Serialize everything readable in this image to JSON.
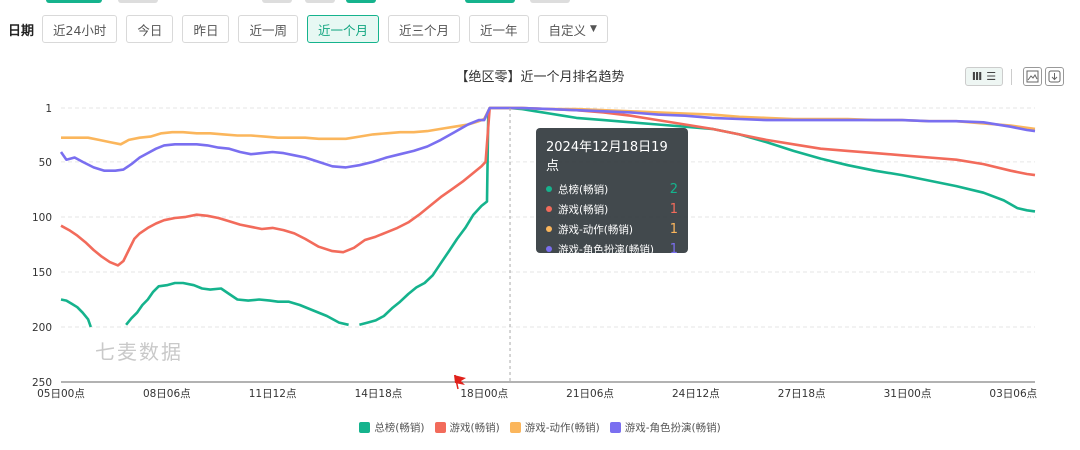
{
  "page": {
    "filter_label": "日期",
    "buttons": [
      {
        "label": "近24小时",
        "active": false
      },
      {
        "label": "今日",
        "active": false
      },
      {
        "label": "昨日",
        "active": false
      },
      {
        "label": "近一周",
        "active": false
      },
      {
        "label": "近一个月",
        "active": true
      },
      {
        "label": "近三个月",
        "active": false
      },
      {
        "label": "近一年",
        "active": false
      },
      {
        "label": "自定义",
        "active": false,
        "dropdown": true
      }
    ],
    "watermark": "七麦数据",
    "accent_color": "#15b38d",
    "toolbox_icons": [
      "bar-chart-icon",
      "list-icon",
      "save-image-icon",
      "download-icon"
    ]
  },
  "tooltip": {
    "title": "2024年12月18日19点",
    "rows": [
      {
        "name": "总榜(畅销)",
        "value": "2",
        "color": "#15b38d"
      },
      {
        "name": "游戏(畅销)",
        "value": "1",
        "color": "#f26b5b"
      },
      {
        "name": "游戏-动作(畅销)",
        "value": "1",
        "color": "#fbb65c"
      },
      {
        "name": "游戏-角色扮演(畅销)",
        "value": "1",
        "color": "#7a6ff0"
      }
    ]
  },
  "chart_data": {
    "type": "line",
    "title": "【绝区零】近一个月排名趋势",
    "y_inverse": true,
    "ylim": [
      1,
      250
    ],
    "yticks": [
      1,
      50,
      100,
      150,
      200,
      250
    ],
    "xlim": [
      0,
      718
    ],
    "xticks": [
      {
        "x": 0,
        "label": "05日00点"
      },
      {
        "x": 78,
        "label": "08日06点"
      },
      {
        "x": 156,
        "label": "11日12点"
      },
      {
        "x": 234,
        "label": "14日18点"
      },
      {
        "x": 312,
        "label": "18日00点"
      },
      {
        "x": 390,
        "label": "21日06点"
      },
      {
        "x": 468,
        "label": "24日12点"
      },
      {
        "x": 546,
        "label": "27日18点"
      },
      {
        "x": 624,
        "label": "31日00点"
      },
      {
        "x": 702,
        "label": "03日06点"
      }
    ],
    "tooltip_x": 331,
    "legend_position": "bottom",
    "grid": "horizontal-dashed",
    "series": [
      {
        "name": "总榜(畅销)",
        "color": "#15b38d",
        "points": [
          [
            0,
            175
          ],
          [
            4,
            176
          ],
          [
            8,
            179
          ],
          [
            12,
            182
          ],
          [
            16,
            187
          ],
          [
            20,
            193
          ],
          [
            22,
            200
          ],
          null,
          [
            48,
            198
          ],
          [
            52,
            192
          ],
          [
            56,
            187
          ],
          [
            60,
            180
          ],
          [
            64,
            175
          ],
          [
            68,
            168
          ],
          [
            72,
            163
          ],
          [
            78,
            162
          ],
          [
            84,
            160
          ],
          [
            90,
            160
          ],
          [
            98,
            162
          ],
          [
            104,
            165
          ],
          [
            110,
            166
          ],
          [
            118,
            165
          ],
          [
            124,
            170
          ],
          [
            130,
            175
          ],
          [
            138,
            176
          ],
          [
            146,
            175
          ],
          [
            154,
            176
          ],
          [
            160,
            177
          ],
          [
            168,
            177
          ],
          [
            176,
            180
          ],
          [
            186,
            185
          ],
          [
            196,
            190
          ],
          [
            205,
            196
          ],
          [
            212,
            198
          ],
          null,
          [
            220,
            198
          ],
          [
            226,
            196
          ],
          [
            232,
            194
          ],
          [
            238,
            190
          ],
          [
            244,
            183
          ],
          [
            250,
            177
          ],
          [
            256,
            170
          ],
          [
            262,
            164
          ],
          [
            268,
            160
          ],
          [
            274,
            153
          ],
          [
            280,
            142
          ],
          [
            286,
            131
          ],
          [
            292,
            120
          ],
          [
            298,
            110
          ],
          [
            304,
            98
          ],
          [
            310,
            90
          ],
          [
            314,
            86
          ],
          [
            315,
            4
          ],
          [
            316,
            1
          ],
          [
            330,
            1
          ],
          [
            340,
            2
          ],
          [
            350,
            4
          ],
          [
            360,
            6
          ],
          [
            370,
            8
          ],
          [
            380,
            10
          ],
          [
            400,
            12
          ],
          [
            420,
            14
          ],
          [
            440,
            16
          ],
          [
            460,
            18
          ],
          [
            480,
            20
          ],
          [
            500,
            25
          ],
          [
            520,
            32
          ],
          [
            540,
            40
          ],
          [
            560,
            47
          ],
          [
            580,
            53
          ],
          [
            600,
            58
          ],
          [
            620,
            62
          ],
          [
            640,
            67
          ],
          [
            660,
            72
          ],
          [
            680,
            78
          ],
          [
            695,
            85
          ],
          [
            705,
            92
          ],
          [
            712,
            94
          ],
          [
            718,
            95
          ]
        ]
      },
      {
        "name": "游戏(畅销)",
        "color": "#f26b5b",
        "points": [
          [
            0,
            108
          ],
          [
            6,
            112
          ],
          [
            12,
            117
          ],
          [
            18,
            123
          ],
          [
            24,
            130
          ],
          [
            30,
            136
          ],
          [
            36,
            141
          ],
          [
            42,
            144
          ],
          [
            46,
            140
          ],
          [
            50,
            130
          ],
          [
            54,
            120
          ],
          [
            58,
            115
          ],
          [
            64,
            110
          ],
          [
            70,
            106
          ],
          [
            76,
            103
          ],
          [
            84,
            101
          ],
          [
            92,
            100
          ],
          [
            100,
            98
          ],
          [
            108,
            99
          ],
          [
            116,
            101
          ],
          [
            124,
            104
          ],
          [
            132,
            107
          ],
          [
            140,
            109
          ],
          [
            148,
            111
          ],
          [
            156,
            110
          ],
          [
            164,
            112
          ],
          [
            172,
            115
          ],
          [
            180,
            120
          ],
          [
            190,
            127
          ],
          [
            200,
            131
          ],
          [
            208,
            132
          ],
          [
            216,
            128
          ],
          [
            224,
            121
          ],
          [
            232,
            118
          ],
          [
            240,
            114
          ],
          [
            248,
            110
          ],
          [
            256,
            105
          ],
          [
            264,
            98
          ],
          [
            272,
            90
          ],
          [
            280,
            82
          ],
          [
            288,
            75
          ],
          [
            296,
            68
          ],
          [
            304,
            60
          ],
          [
            310,
            54
          ],
          [
            313,
            50
          ],
          [
            316,
            1
          ],
          [
            340,
            1
          ],
          [
            360,
            2
          ],
          [
            380,
            3
          ],
          [
            400,
            5
          ],
          [
            420,
            8
          ],
          [
            440,
            12
          ],
          [
            460,
            16
          ],
          [
            480,
            20
          ],
          [
            500,
            25
          ],
          [
            520,
            30
          ],
          [
            540,
            34
          ],
          [
            560,
            38
          ],
          [
            580,
            40
          ],
          [
            600,
            42
          ],
          [
            620,
            44
          ],
          [
            640,
            46
          ],
          [
            660,
            48
          ],
          [
            680,
            52
          ],
          [
            700,
            58
          ],
          [
            712,
            61
          ],
          [
            718,
            62
          ]
        ]
      },
      {
        "name": "游戏-动作(畅销)",
        "color": "#fbb65c",
        "points": [
          [
            0,
            28
          ],
          [
            10,
            28
          ],
          [
            20,
            28
          ],
          [
            28,
            30
          ],
          [
            36,
            32
          ],
          [
            44,
            34
          ],
          [
            50,
            30
          ],
          [
            58,
            28
          ],
          [
            66,
            27
          ],
          [
            74,
            24
          ],
          [
            82,
            23
          ],
          [
            90,
            23
          ],
          [
            100,
            24
          ],
          [
            110,
            24
          ],
          [
            120,
            25
          ],
          [
            130,
            26
          ],
          [
            140,
            26
          ],
          [
            150,
            27
          ],
          [
            160,
            28
          ],
          [
            170,
            28
          ],
          [
            180,
            28
          ],
          [
            190,
            29
          ],
          [
            200,
            29
          ],
          [
            210,
            29
          ],
          [
            220,
            27
          ],
          [
            230,
            25
          ],
          [
            240,
            24
          ],
          [
            250,
            23
          ],
          [
            260,
            23
          ],
          [
            270,
            22
          ],
          [
            280,
            20
          ],
          [
            290,
            18
          ],
          [
            300,
            16
          ],
          [
            308,
            13
          ],
          [
            312,
            11
          ],
          [
            316,
            1
          ],
          [
            340,
            1
          ],
          [
            360,
            2
          ],
          [
            380,
            2
          ],
          [
            400,
            3
          ],
          [
            420,
            4
          ],
          [
            440,
            5
          ],
          [
            460,
            6
          ],
          [
            480,
            7
          ],
          [
            500,
            9
          ],
          [
            520,
            10
          ],
          [
            540,
            11
          ],
          [
            560,
            11
          ],
          [
            580,
            11
          ],
          [
            600,
            12
          ],
          [
            620,
            12
          ],
          [
            640,
            13
          ],
          [
            660,
            13
          ],
          [
            680,
            15
          ],
          [
            700,
            17
          ],
          [
            712,
            19
          ],
          [
            718,
            20
          ]
        ]
      },
      {
        "name": "游戏-角色扮演(畅销)",
        "color": "#7a6ff0",
        "points": [
          [
            0,
            41
          ],
          [
            4,
            48
          ],
          [
            10,
            46
          ],
          [
            16,
            50
          ],
          [
            24,
            55
          ],
          [
            32,
            58
          ],
          [
            40,
            58
          ],
          [
            46,
            57
          ],
          [
            52,
            52
          ],
          [
            58,
            46
          ],
          [
            64,
            42
          ],
          [
            70,
            38
          ],
          [
            76,
            35
          ],
          [
            84,
            34
          ],
          [
            92,
            34
          ],
          [
            100,
            34
          ],
          [
            108,
            35
          ],
          [
            116,
            37
          ],
          [
            124,
            38
          ],
          [
            132,
            41
          ],
          [
            140,
            43
          ],
          [
            148,
            42
          ],
          [
            156,
            41
          ],
          [
            164,
            42
          ],
          [
            172,
            44
          ],
          [
            180,
            46
          ],
          [
            190,
            50
          ],
          [
            200,
            54
          ],
          [
            210,
            55
          ],
          [
            220,
            53
          ],
          [
            230,
            50
          ],
          [
            240,
            46
          ],
          [
            250,
            43
          ],
          [
            260,
            40
          ],
          [
            270,
            36
          ],
          [
            280,
            30
          ],
          [
            290,
            23
          ],
          [
            300,
            16
          ],
          [
            308,
            12
          ],
          [
            312,
            12
          ],
          [
            316,
            1
          ],
          [
            340,
            1
          ],
          [
            360,
            2
          ],
          [
            380,
            3
          ],
          [
            400,
            4
          ],
          [
            420,
            5
          ],
          [
            440,
            7
          ],
          [
            460,
            8
          ],
          [
            480,
            10
          ],
          [
            500,
            11
          ],
          [
            520,
            12
          ],
          [
            540,
            12
          ],
          [
            560,
            12
          ],
          [
            580,
            12
          ],
          [
            600,
            12
          ],
          [
            620,
            12
          ],
          [
            640,
            13
          ],
          [
            660,
            13
          ],
          [
            680,
            14
          ],
          [
            700,
            18
          ],
          [
            712,
            21
          ],
          [
            718,
            22
          ]
        ]
      }
    ]
  }
}
